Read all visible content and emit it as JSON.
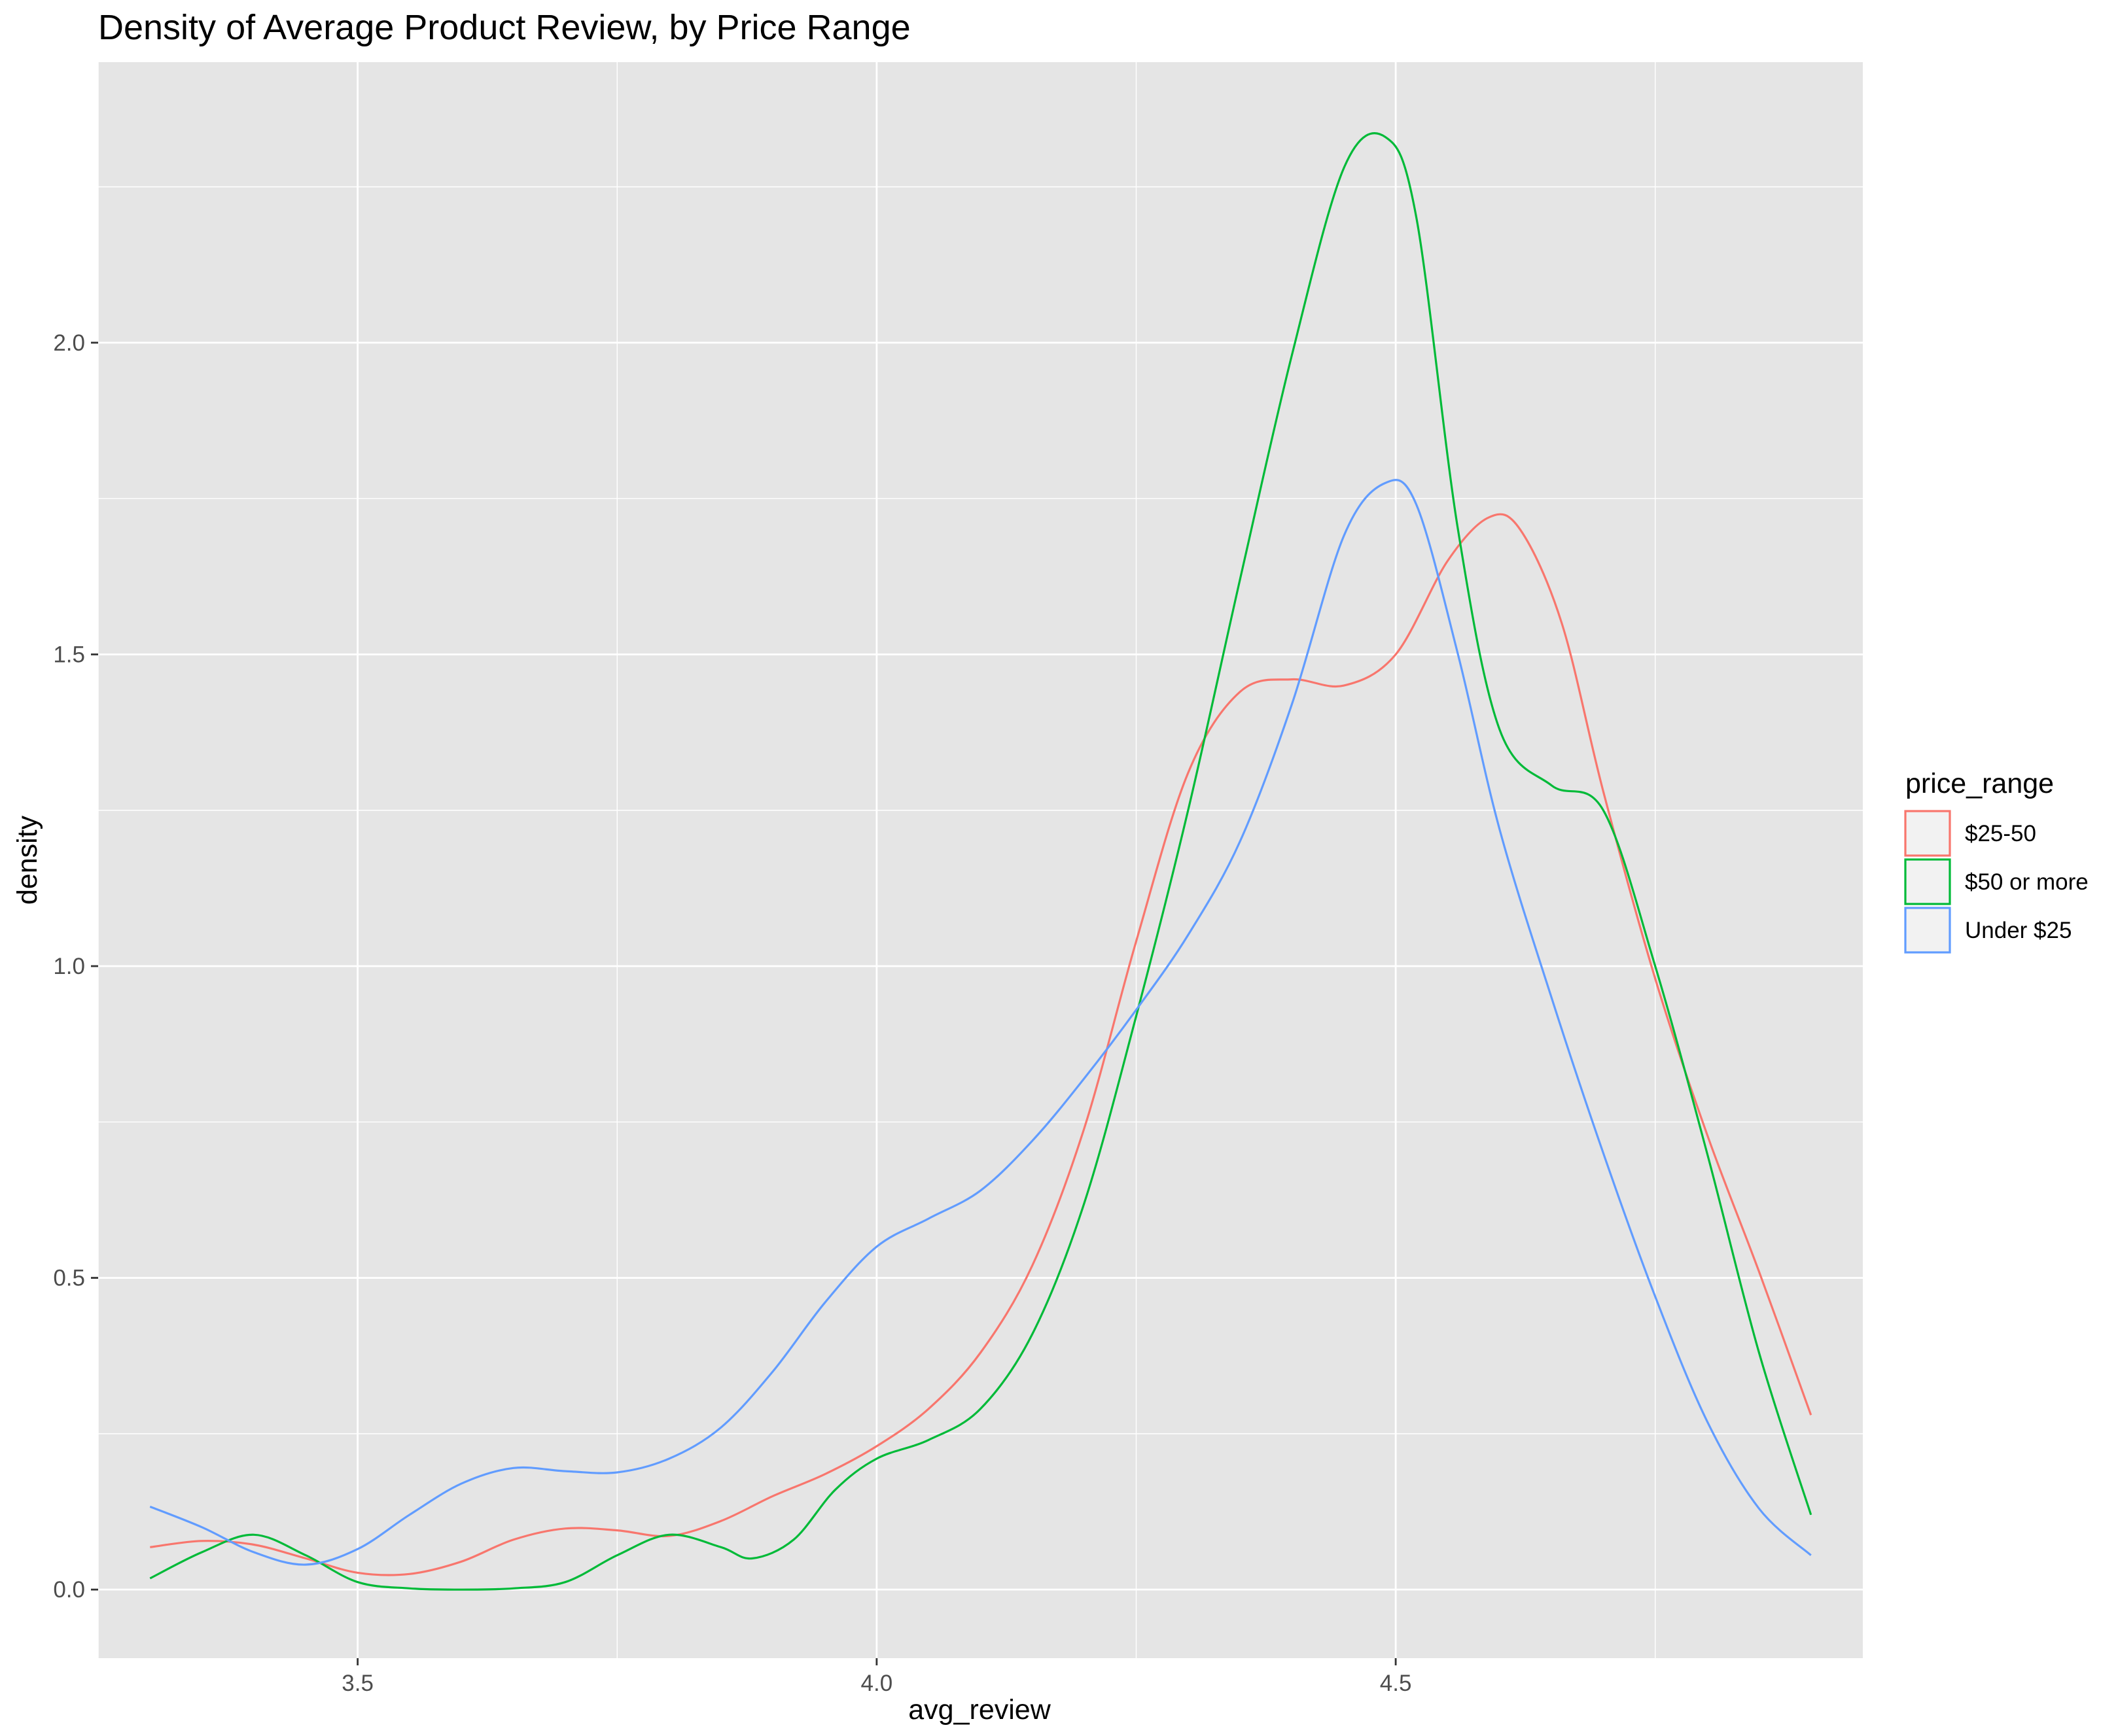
{
  "chart_data": {
    "type": "line",
    "title": "Density of Average Product Review, by Price Range",
    "xlabel": "avg_review",
    "ylabel": "density",
    "xlim": [
      3.25,
      4.95
    ],
    "ylim": [
      -0.11,
      2.45
    ],
    "x_ticks": [
      {
        "value": 3.5,
        "label": "3.5"
      },
      {
        "value": 4.0,
        "label": "4.0"
      },
      {
        "value": 4.5,
        "label": "4.5"
      }
    ],
    "y_ticks": [
      {
        "value": 0.0,
        "label": "0.0"
      },
      {
        "value": 0.5,
        "label": "0.5"
      },
      {
        "value": 1.0,
        "label": "1.0"
      },
      {
        "value": 1.5,
        "label": "1.5"
      },
      {
        "value": 2.0,
        "label": "2.0"
      }
    ],
    "grid": true,
    "legend": {
      "title": "price_range",
      "placement": "right"
    },
    "background_color": "#e5e5e5",
    "grid_color": "#ffffff",
    "series": [
      {
        "name": "$25-50",
        "color": "#f8766d",
        "points": [
          [
            3.3,
            0.068
          ],
          [
            3.35,
            0.078
          ],
          [
            3.4,
            0.072
          ],
          [
            3.45,
            0.05
          ],
          [
            3.5,
            0.027
          ],
          [
            3.55,
            0.025
          ],
          [
            3.6,
            0.045
          ],
          [
            3.65,
            0.08
          ],
          [
            3.7,
            0.098
          ],
          [
            3.75,
            0.095
          ],
          [
            3.8,
            0.086
          ],
          [
            3.85,
            0.11
          ],
          [
            3.9,
            0.15
          ],
          [
            3.95,
            0.185
          ],
          [
            4.0,
            0.23
          ],
          [
            4.05,
            0.29
          ],
          [
            4.1,
            0.38
          ],
          [
            4.15,
            0.52
          ],
          [
            4.2,
            0.74
          ],
          [
            4.25,
            1.04
          ],
          [
            4.3,
            1.31
          ],
          [
            4.35,
            1.44
          ],
          [
            4.4,
            1.46
          ],
          [
            4.45,
            1.45
          ],
          [
            4.5,
            1.5
          ],
          [
            4.55,
            1.65
          ],
          [
            4.59,
            1.72
          ],
          [
            4.62,
            1.7
          ],
          [
            4.66,
            1.55
          ],
          [
            4.7,
            1.28
          ],
          [
            4.75,
            0.98
          ],
          [
            4.8,
            0.73
          ],
          [
            4.85,
            0.51
          ],
          [
            4.9,
            0.28
          ]
        ]
      },
      {
        "name": "$50 or more",
        "color": "#00ba38",
        "points": [
          [
            3.3,
            0.018
          ],
          [
            3.35,
            0.06
          ],
          [
            3.4,
            0.088
          ],
          [
            3.45,
            0.055
          ],
          [
            3.5,
            0.012
          ],
          [
            3.55,
            0.002
          ],
          [
            3.6,
            0.0
          ],
          [
            3.65,
            0.002
          ],
          [
            3.7,
            0.012
          ],
          [
            3.75,
            0.055
          ],
          [
            3.8,
            0.088
          ],
          [
            3.85,
            0.068
          ],
          [
            3.88,
            0.05
          ],
          [
            3.92,
            0.08
          ],
          [
            3.96,
            0.16
          ],
          [
            4.0,
            0.21
          ],
          [
            4.05,
            0.24
          ],
          [
            4.1,
            0.29
          ],
          [
            4.15,
            0.41
          ],
          [
            4.2,
            0.62
          ],
          [
            4.25,
            0.92
          ],
          [
            4.3,
            1.25
          ],
          [
            4.35,
            1.62
          ],
          [
            4.4,
            1.98
          ],
          [
            4.45,
            2.28
          ],
          [
            4.49,
            2.33
          ],
          [
            4.52,
            2.2
          ],
          [
            4.56,
            1.7
          ],
          [
            4.6,
            1.38
          ],
          [
            4.65,
            1.29
          ],
          [
            4.7,
            1.25
          ],
          [
            4.75,
            1.0
          ],
          [
            4.8,
            0.7
          ],
          [
            4.85,
            0.38
          ],
          [
            4.9,
            0.12
          ]
        ]
      },
      {
        "name": "Under $25",
        "color": "#619cff",
        "points": [
          [
            3.3,
            0.133
          ],
          [
            3.35,
            0.1
          ],
          [
            3.4,
            0.06
          ],
          [
            3.45,
            0.04
          ],
          [
            3.5,
            0.065
          ],
          [
            3.55,
            0.12
          ],
          [
            3.6,
            0.17
          ],
          [
            3.65,
            0.195
          ],
          [
            3.7,
            0.19
          ],
          [
            3.75,
            0.188
          ],
          [
            3.8,
            0.21
          ],
          [
            3.85,
            0.26
          ],
          [
            3.9,
            0.35
          ],
          [
            3.95,
            0.46
          ],
          [
            4.0,
            0.55
          ],
          [
            4.05,
            0.595
          ],
          [
            4.1,
            0.64
          ],
          [
            4.15,
            0.72
          ],
          [
            4.2,
            0.82
          ],
          [
            4.25,
            0.93
          ],
          [
            4.3,
            1.05
          ],
          [
            4.35,
            1.2
          ],
          [
            4.4,
            1.42
          ],
          [
            4.45,
            1.69
          ],
          [
            4.49,
            1.775
          ],
          [
            4.52,
            1.74
          ],
          [
            4.56,
            1.5
          ],
          [
            4.6,
            1.22
          ],
          [
            4.65,
            0.95
          ],
          [
            4.7,
            0.7
          ],
          [
            4.75,
            0.47
          ],
          [
            4.8,
            0.27
          ],
          [
            4.85,
            0.13
          ],
          [
            4.9,
            0.055
          ]
        ]
      }
    ]
  }
}
